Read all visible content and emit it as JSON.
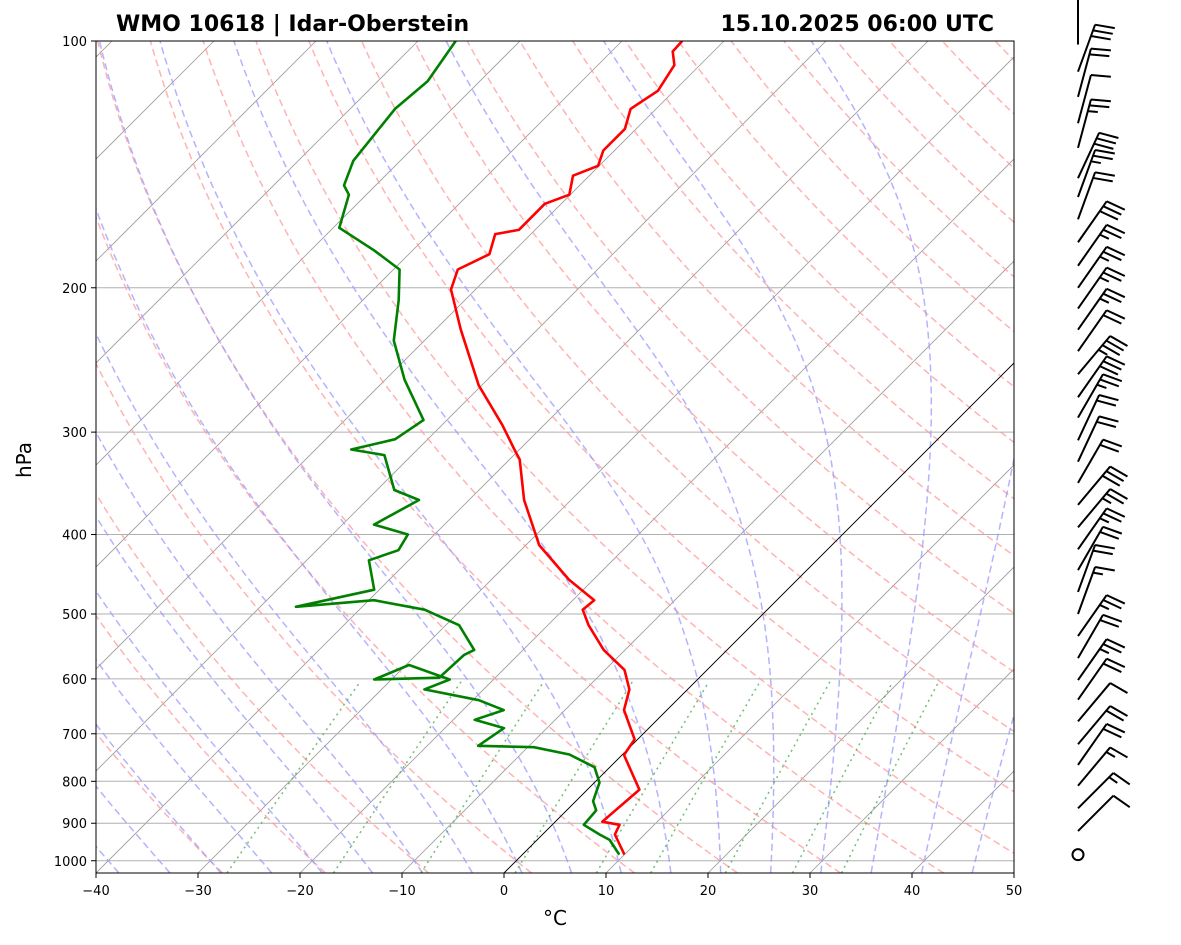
{
  "chart_data": {
    "type": "line",
    "subtype": "skew-t log-p",
    "title_left": "WMO 10618 | Idar-Oberstein",
    "title_right": "15.10.2025 06:00 UTC",
    "xlabel": "°C",
    "ylabel": "hPa",
    "xlim": [
      -40,
      50
    ],
    "ylim": [
      1035,
      100
    ],
    "xticks": [
      -40,
      -30,
      -20,
      -10,
      0,
      10,
      20,
      30,
      40,
      50
    ],
    "yticks": [
      100,
      200,
      300,
      400,
      500,
      600,
      700,
      800,
      900,
      1000
    ],
    "grid": true,
    "colors": {
      "temperature": "#ff0000",
      "dewpoint": "#008000",
      "dry_adiabats": "#ff9999",
      "moist_adiabats": "#9999ff",
      "mixing_ratio": "#4caf50",
      "isotherms": "#808080"
    },
    "series": [
      {
        "name": "temperature",
        "points": [
          [
            983,
            10.0
          ],
          [
            929,
            7.1
          ],
          [
            904,
            6.6
          ],
          [
            896,
            4.6
          ],
          [
            819,
            5.1
          ],
          [
            743,
            0.2
          ],
          [
            711,
            -0.3
          ],
          [
            655,
            -4.2
          ],
          [
            618,
            -5.7
          ],
          [
            585,
            -8.1
          ],
          [
            553,
            -12.1
          ],
          [
            516,
            -16.0
          ],
          [
            494,
            -18.1
          ],
          [
            481,
            -17.9
          ],
          [
            454,
            -22.4
          ],
          [
            412,
            -28.7
          ],
          [
            363,
            -34.6
          ],
          [
            324,
            -39.0
          ],
          [
            315,
            -40.5
          ],
          [
            294,
            -44.1
          ],
          [
            263,
            -50.3
          ],
          [
            225,
            -57.5
          ],
          [
            201,
            -62.4
          ],
          [
            190,
            -63.7
          ],
          [
            182,
            -62.1
          ],
          [
            172,
            -63.5
          ],
          [
            170,
            -61.6
          ],
          [
            158,
            -61.6
          ],
          [
            154,
            -60.1
          ],
          [
            146,
            -61.6
          ],
          [
            142,
            -60.1
          ],
          [
            136,
            -61.1
          ],
          [
            128,
            -61.1
          ],
          [
            121,
            -62.5
          ],
          [
            115,
            -61.6
          ],
          [
            107,
            -62.5
          ],
          [
            103,
            -64.0
          ],
          [
            100,
            -64.1
          ]
        ]
      },
      {
        "name": "dewpoint",
        "points": [
          [
            983,
            9.5
          ],
          [
            943,
            7.1
          ],
          [
            929,
            5.6
          ],
          [
            904,
            3.1
          ],
          [
            868,
            2.9
          ],
          [
            846,
            1.7
          ],
          [
            803,
            0.5
          ],
          [
            769,
            -1.5
          ],
          [
            742,
            -5.2
          ],
          [
            727,
            -9.4
          ],
          [
            724,
            -15.0
          ],
          [
            689,
            -14.2
          ],
          [
            673,
            -17.9
          ],
          [
            655,
            -16.0
          ],
          [
            637,
            -19.4
          ],
          [
            618,
            -25.8
          ],
          [
            601,
            -24.3
          ],
          [
            577,
            -29.7
          ],
          [
            601,
            -31.7
          ],
          [
            598,
            -25.5
          ],
          [
            561,
            -25.3
          ],
          [
            553,
            -24.8
          ],
          [
            516,
            -28.7
          ],
          [
            494,
            -33.6
          ],
          [
            481,
            -39.5
          ],
          [
            490,
            -46.5
          ],
          [
            467,
            -40.5
          ],
          [
            430,
            -43.9
          ],
          [
            418,
            -42.0
          ],
          [
            400,
            -42.6
          ],
          [
            389,
            -46.9
          ],
          [
            363,
            -44.9
          ],
          [
            353,
            -48.3
          ],
          [
            320,
            -52.7
          ],
          [
            315,
            -56.5
          ],
          [
            306,
            -53.2
          ],
          [
            290,
            -52.3
          ],
          [
            259,
            -58.1
          ],
          [
            232,
            -63.0
          ],
          [
            207,
            -66.5
          ],
          [
            190,
            -69.4
          ],
          [
            180,
            -73.8
          ],
          [
            169,
            -79.4
          ],
          [
            154,
            -81.7
          ],
          [
            150,
            -83.1
          ],
          [
            140,
            -84.6
          ],
          [
            121,
            -85.6
          ],
          [
            112,
            -85.1
          ],
          [
            100,
            -86.3
          ]
        ]
      }
    ],
    "dry_adiabats_theta_c": [
      -30,
      -20,
      -10,
      0,
      10,
      20,
      30,
      40,
      50,
      60,
      70,
      80,
      90,
      100,
      110,
      120,
      130,
      140,
      150,
      160,
      170,
      180,
      190,
      200
    ],
    "moist_adiabats_t0_c": [
      -40,
      -35,
      -30,
      -25,
      -20,
      -15,
      -10,
      -5,
      0,
      5,
      10,
      15,
      20,
      25,
      30,
      35,
      40,
      45
    ],
    "mixing_ratios_kgkg": [
      0.0004,
      0.001,
      0.002,
      0.004,
      0.007,
      0.01,
      0.016,
      0.024,
      0.032
    ],
    "wind_barbs": [
      {
        "p": 101,
        "speed_kt": 2,
        "dir_deg": 0
      },
      {
        "p": 109,
        "speed_kt": 30,
        "dir_deg": 20
      },
      {
        "p": 117,
        "speed_kt": 20,
        "dir_deg": 15
      },
      {
        "p": 126,
        "speed_kt": 10,
        "dir_deg": 15
      },
      {
        "p": 135,
        "speed_kt": 25,
        "dir_deg": 15
      },
      {
        "p": 147,
        "speed_kt": 30,
        "dir_deg": 25
      },
      {
        "p": 155,
        "speed_kt": 25,
        "dir_deg": 20
      },
      {
        "p": 165,
        "speed_kt": 20,
        "dir_deg": 20
      },
      {
        "p": 176,
        "speed_kt": 30,
        "dir_deg": 35
      },
      {
        "p": 188,
        "speed_kt": 25,
        "dir_deg": 35
      },
      {
        "p": 200,
        "speed_kt": 25,
        "dir_deg": 35
      },
      {
        "p": 212,
        "speed_kt": 25,
        "dir_deg": 35
      },
      {
        "p": 225,
        "speed_kt": 25,
        "dir_deg": 35
      },
      {
        "p": 239,
        "speed_kt": 20,
        "dir_deg": 35
      },
      {
        "p": 255,
        "speed_kt": 35,
        "dir_deg": 40
      },
      {
        "p": 272,
        "speed_kt": 30,
        "dir_deg": 35
      },
      {
        "p": 288,
        "speed_kt": 25,
        "dir_deg": 30
      },
      {
        "p": 307,
        "speed_kt": 20,
        "dir_deg": 25
      },
      {
        "p": 326,
        "speed_kt": 20,
        "dir_deg": 25
      },
      {
        "p": 346,
        "speed_kt": 20,
        "dir_deg": 30
      },
      {
        "p": 368,
        "speed_kt": 30,
        "dir_deg": 40
      },
      {
        "p": 392,
        "speed_kt": 25,
        "dir_deg": 40
      },
      {
        "p": 417,
        "speed_kt": 25,
        "dir_deg": 35
      },
      {
        "p": 442,
        "speed_kt": 20,
        "dir_deg": 30
      },
      {
        "p": 470,
        "speed_kt": 20,
        "dir_deg": 20
      },
      {
        "p": 500,
        "speed_kt": 15,
        "dir_deg": 20
      },
      {
        "p": 532,
        "speed_kt": 25,
        "dir_deg": 35
      },
      {
        "p": 566,
        "speed_kt": 20,
        "dir_deg": 30
      },
      {
        "p": 602,
        "speed_kt": 25,
        "dir_deg": 35
      },
      {
        "p": 636,
        "speed_kt": 20,
        "dir_deg": 35
      },
      {
        "p": 676,
        "speed_kt": 10,
        "dir_deg": 40
      },
      {
        "p": 721,
        "speed_kt": 20,
        "dir_deg": 40
      },
      {
        "p": 764,
        "speed_kt": 20,
        "dir_deg": 35
      },
      {
        "p": 810,
        "speed_kt": 15,
        "dir_deg": 40
      },
      {
        "p": 863,
        "speed_kt": 15,
        "dir_deg": 45
      },
      {
        "p": 920,
        "speed_kt": 10,
        "dir_deg": 45
      },
      {
        "p": 983,
        "speed_kt": 0,
        "dir_deg": 0
      }
    ]
  }
}
